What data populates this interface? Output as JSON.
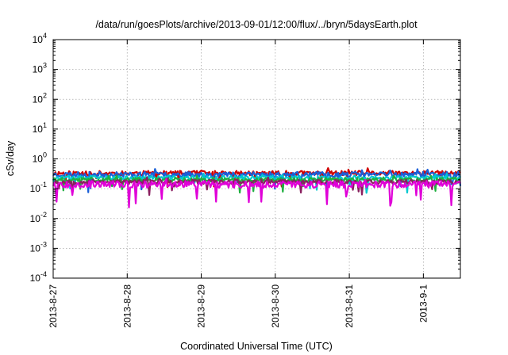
{
  "chart_data": {
    "type": "line",
    "title": "/data/run/goesPlots/archive/2013-09-01/12:00/flux/../bryn/5daysEarth.plot",
    "xlabel": "Coordinated Universal Time (UTC)",
    "ylabel": "cSv/day",
    "yscale": "log",
    "ylim": [
      0.0001,
      10000
    ],
    "y_ticks": [
      {
        "value": 0.0001,
        "base": "10",
        "exp": "-4"
      },
      {
        "value": 0.001,
        "base": "10",
        "exp": "-3"
      },
      {
        "value": 0.01,
        "base": "10",
        "exp": "-2"
      },
      {
        "value": 0.1,
        "base": "10",
        "exp": "-1"
      },
      {
        "value": 1,
        "base": "10",
        "exp": "0"
      },
      {
        "value": 10,
        "base": "10",
        "exp": "1"
      },
      {
        "value": 100,
        "base": "10",
        "exp": "2"
      },
      {
        "value": 1000,
        "base": "10",
        "exp": "3"
      },
      {
        "value": 10000,
        "base": "10",
        "exp": "4"
      }
    ],
    "xlim": [
      "2013-8-27",
      "2013-9-1 12:00"
    ],
    "x_ticks": [
      "2013-8-27",
      "2013-8-28",
      "2013-8-29",
      "2013-8-30",
      "2013-8-31",
      "2013-9-1"
    ],
    "grid": true,
    "series": [
      {
        "color": "#d00000",
        "level": 0.33,
        "noise": 0.32,
        "seed": 11
      },
      {
        "color": "#1a5fd8",
        "level": 0.3,
        "noise": 0.35,
        "seed": 23
      },
      {
        "color": "#00c8d0",
        "level": 0.23,
        "noise": 0.28,
        "seed": 37
      },
      {
        "color": "#20b040",
        "level": 0.2,
        "noise": 0.26,
        "seed": 41
      },
      {
        "color": "#8a2060",
        "level": 0.17,
        "noise": 0.3,
        "seed": 53
      },
      {
        "color": "#e000d8",
        "level": 0.14,
        "noise": 0.45,
        "seed": 67
      }
    ]
  }
}
